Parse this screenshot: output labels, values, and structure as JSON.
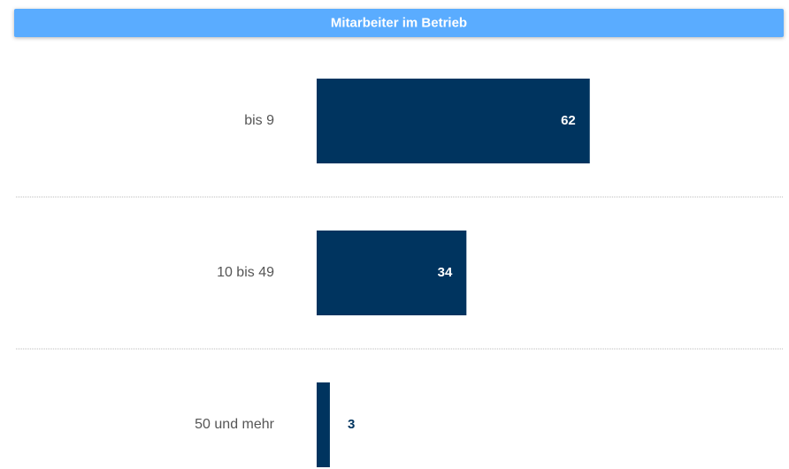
{
  "chart_data": {
    "type": "barh",
    "title": "Mitarbeiter im Betrieb",
    "categories": [
      "bis 9",
      "10 bis 49",
      "50 und mehr"
    ],
    "values": [
      62,
      34,
      3
    ],
    "color": "#00345f",
    "header_color": "#5aacff"
  }
}
